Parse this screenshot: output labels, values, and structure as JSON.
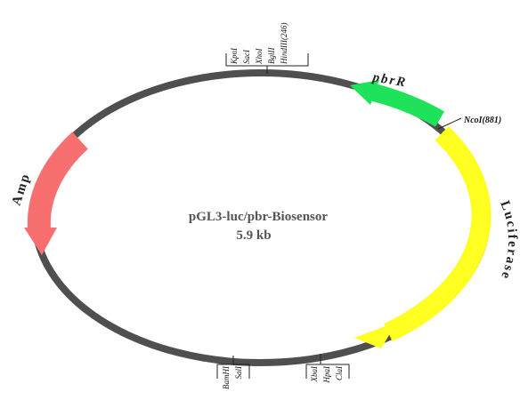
{
  "plasmid": {
    "name": "pGL3-luc/pbr-Biosensor",
    "size": "5.9 kb"
  },
  "features": {
    "pbrR": {
      "label": "pbrR",
      "color": "#1ee35a"
    },
    "luciferase": {
      "label": "Luciferase",
      "color": "#ffff22"
    },
    "amp": {
      "label": "Amp",
      "color": "#f76f6f"
    }
  },
  "backbone_color": "#4f4f4f",
  "sites": {
    "top": [
      "KpnI",
      "SacI",
      "XhoI",
      "BglII",
      "HindIII(246)"
    ],
    "ncoi": "NcoI(881)",
    "bottom_left": [
      "BamHI",
      "SalI"
    ],
    "bottom_right": [
      "XbaI",
      "HpaI",
      "ClaI"
    ]
  }
}
